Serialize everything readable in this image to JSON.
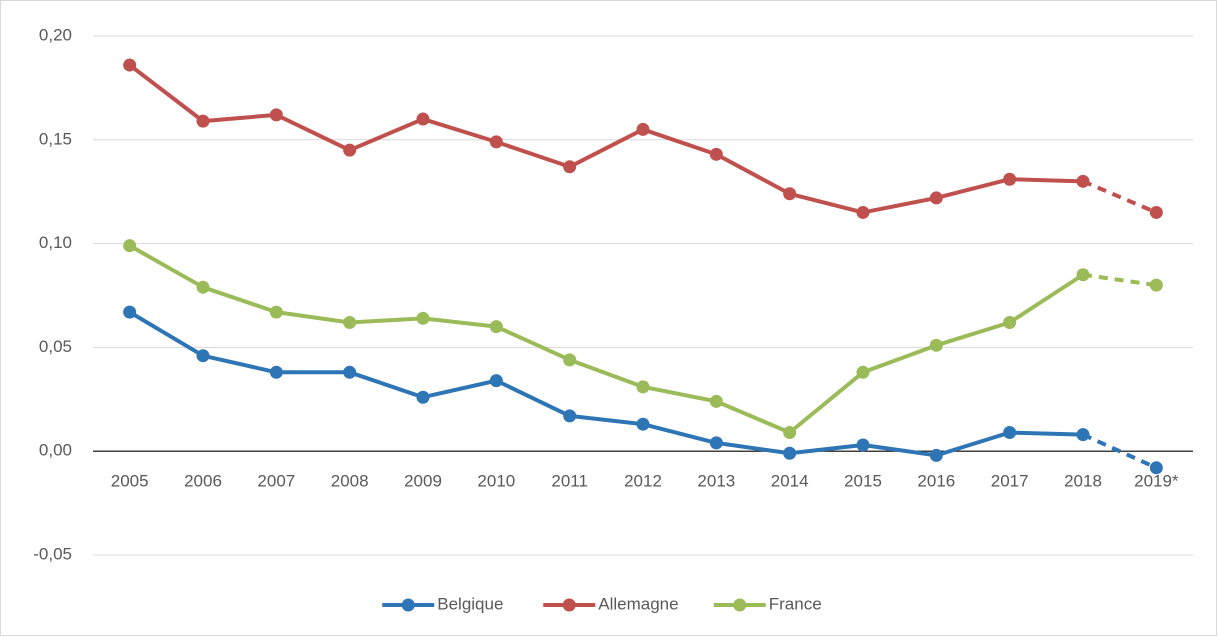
{
  "chart_data": {
    "type": "line",
    "categories": [
      "2005",
      "2006",
      "2007",
      "2008",
      "2009",
      "2010",
      "2011",
      "2012",
      "2013",
      "2014",
      "2015",
      "2016",
      "2017",
      "2018",
      "2019*"
    ],
    "series": [
      {
        "name": "Belgique",
        "color": "#2e75b6",
        "values": [
          0.067,
          0.046,
          0.038,
          0.038,
          0.026,
          0.034,
          0.017,
          0.013,
          0.004,
          -0.001,
          0.003,
          -0.002,
          0.009,
          0.008,
          -0.008
        ]
      },
      {
        "name": "Allemagne",
        "color": "#c0504d",
        "values": [
          0.186,
          0.159,
          0.162,
          0.145,
          0.16,
          0.149,
          0.137,
          0.155,
          0.143,
          0.124,
          0.115,
          0.122,
          0.131,
          0.13,
          0.115
        ]
      },
      {
        "name": "France",
        "color": "#9bbb59",
        "values": [
          0.099,
          0.079,
          0.067,
          0.062,
          0.064,
          0.06,
          0.044,
          0.031,
          0.024,
          0.009,
          0.038,
          0.051,
          0.062,
          0.085,
          0.08
        ]
      }
    ],
    "ylim": [
      -0.05,
      0.2
    ],
    "yticks": [
      {
        "value": -0.05,
        "label": "-0,05"
      },
      {
        "value": 0,
        "label": "0,00"
      },
      {
        "value": 0.05,
        "label": "0,05"
      },
      {
        "value": 0.1,
        "label": "0,10"
      },
      {
        "value": 0.15,
        "label": "0,15"
      },
      {
        "value": 0.2,
        "label": "0,20"
      }
    ],
    "grid": true,
    "legend": "bottom",
    "dashed_last_segment": true
  }
}
